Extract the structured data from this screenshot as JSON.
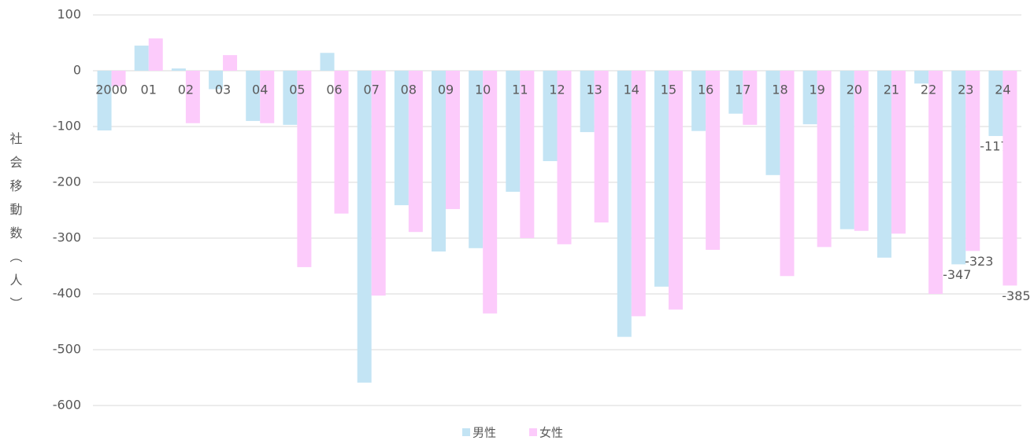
{
  "chart_data": {
    "type": "bar",
    "y_label": "社会移動数（人）",
    "categories": [
      "2000",
      "01",
      "02",
      "03",
      "04",
      "05",
      "06",
      "07",
      "08",
      "09",
      "10",
      "11",
      "12",
      "13",
      "14",
      "15",
      "16",
      "17",
      "18",
      "19",
      "20",
      "21",
      "22",
      "23",
      "24"
    ],
    "series": [
      {
        "name": "男性",
        "color": "#c3e4f4",
        "values": [
          -107,
          45,
          4,
          -33,
          -90,
          -97,
          32,
          -559,
          -241,
          -324,
          -318,
          -217,
          -162,
          -110,
          -477,
          -387,
          -108,
          -77,
          -187,
          -96,
          -284,
          -335,
          -23,
          -347,
          -117
        ],
        "value_labels": [
          null,
          null,
          null,
          null,
          null,
          null,
          null,
          null,
          null,
          null,
          null,
          null,
          null,
          null,
          null,
          null,
          null,
          null,
          null,
          null,
          null,
          null,
          null,
          "-347",
          "-117"
        ]
      },
      {
        "name": "女性",
        "color": "#fccbfb",
        "values": [
          -28,
          58,
          -94,
          28,
          -94,
          -352,
          -256,
          -403,
          -289,
          -248,
          -435,
          -300,
          -311,
          -272,
          -440,
          -428,
          -321,
          -97,
          -368,
          -316,
          -287,
          -292,
          -400,
          -323,
          -385
        ],
        "value_labels": [
          null,
          null,
          null,
          null,
          null,
          null,
          null,
          null,
          null,
          null,
          null,
          null,
          null,
          null,
          null,
          null,
          null,
          null,
          null,
          null,
          null,
          null,
          null,
          "-323",
          "-385"
        ]
      }
    ],
    "ylim": [
      -600,
      100
    ],
    "yticks": [
      -600,
      -500,
      -400,
      -300,
      -200,
      -100,
      0,
      100
    ],
    "grid": true,
    "legend": "bottom"
  }
}
